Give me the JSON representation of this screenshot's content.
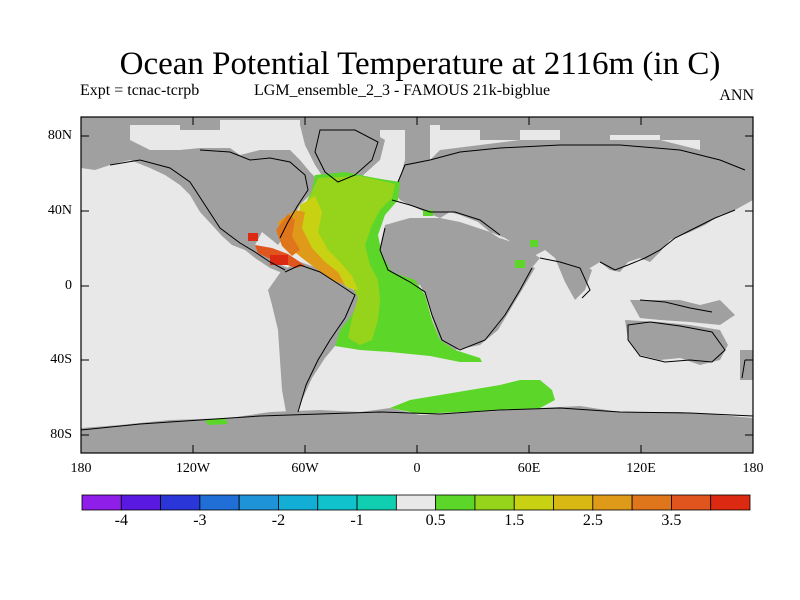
{
  "title": "Ocean Potential Temperature at 2116m (in C)",
  "experiment": "Expt = tcnac-tcrpb",
  "run": "LGM_ensemble_2_3 - FAMOUS 21k-bigblue",
  "period": "ANN",
  "lat_labels": [
    "80N",
    "40N",
    "0",
    "40S",
    "80S"
  ],
  "lon_labels": [
    "180",
    "120W",
    "60W",
    "0",
    "60E",
    "120E",
    "180"
  ],
  "colorbar": {
    "labels": [
      "-4",
      "-3",
      "-2",
      "-1",
      "0.5",
      "1.5",
      "2.5",
      "3.5"
    ],
    "colors": [
      "#8f1ee8",
      "#5a19e0",
      "#2a36d8",
      "#1f6fd6",
      "#1e93d8",
      "#13aed6",
      "#10c2cc",
      "#10cfb0",
      "#e8e8e8",
      "#5dd62a",
      "#96d41c",
      "#c8d212",
      "#d9b814",
      "#e09a1a",
      "#e0761c",
      "#e0541e",
      "#dc2a12"
    ]
  },
  "colors": {
    "land": "#a0a0a0",
    "ocean_missing": "#e8e8e8"
  }
}
